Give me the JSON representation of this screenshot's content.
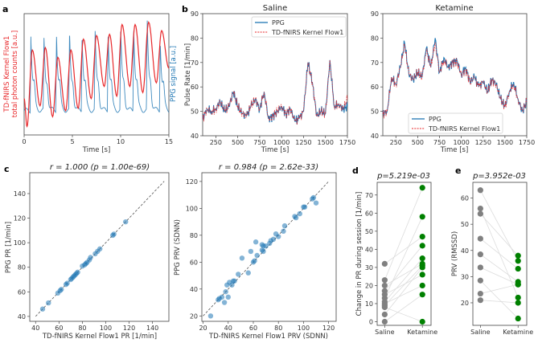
{
  "panel_labels": {
    "a": "a",
    "b": "b",
    "c": "c",
    "d": "d",
    "e": "e"
  },
  "colors": {
    "ppg": "#1f77b4",
    "flow": "#e8282b",
    "saline_dot": "#808080",
    "ketamine_dot": "#008000",
    "identity": "#555555"
  },
  "chart_data": [
    {
      "id": "a",
      "type": "line",
      "xlabel": "Time [s]",
      "ylabel_left": [
        "TD-fNIRS Kernel Flow1",
        "total photon counts [a.u.]"
      ],
      "ylabel_right": "PPG signal [a.u.]",
      "xlim": [
        0,
        15
      ],
      "xticks": [
        0,
        5,
        10,
        15
      ],
      "series": [
        {
          "name": "PPG",
          "beat_times": [
            0.7,
            2.05,
            3.35,
            4.7,
            6.0,
            7.35,
            8.7,
            10.0,
            11.35,
            12.75,
            14.1
          ],
          "peak_values": [
            0.83,
            0.81,
            0.86,
            0.86,
            0.86,
            0.87,
            0.89,
            0.9,
            0.91,
            0.96,
            0.81
          ],
          "baseline": 0.2
        },
        {
          "name": "TD-fNIRS Kernel Flow1",
          "peak_times": [
            0.85,
            2.2,
            3.5,
            4.85,
            6.15,
            7.5,
            8.85,
            10.15,
            11.5,
            12.9,
            14.25
          ],
          "peak_values": [
            0.7,
            0.72,
            0.64,
            0.7,
            0.79,
            0.82,
            0.83,
            0.91,
            0.91,
            0.93,
            0.86
          ],
          "trough_times": [
            0.3,
            1.65,
            2.95,
            4.3,
            5.6,
            6.95,
            8.3,
            9.6,
            10.95,
            12.3,
            13.7
          ],
          "trough_values": [
            0.07,
            0.24,
            0.15,
            0.2,
            0.22,
            0.3,
            0.4,
            0.32,
            0.4,
            0.35,
            0.43
          ]
        }
      ]
    },
    {
      "id": "b-saline",
      "type": "line",
      "title": "Saline",
      "xlabel": "Time [s]",
      "ylabel": "Pulse Rate [1/min]",
      "xlim": [
        100,
        1750
      ],
      "ylim": [
        40,
        90
      ],
      "xticks": [
        250,
        500,
        750,
        1000,
        1250,
        1500,
        1750
      ],
      "yticks": [
        40,
        50,
        60,
        70,
        80,
        90
      ],
      "legend": {
        "position": "upper right",
        "entries": [
          "PPG",
          "TD-fNIRS Kernel Flow1"
        ]
      },
      "x_start": 100,
      "x_step": 50,
      "series": [
        {
          "name": "PPG",
          "values": [
            47,
            51,
            50,
            51,
            54,
            50,
            52,
            58,
            52,
            49,
            48,
            52,
            55,
            51,
            58,
            47,
            48,
            50,
            52,
            49,
            51,
            46,
            47,
            50,
            70,
            62,
            48,
            50,
            49,
            71,
            52,
            53,
            51,
            52
          ]
        },
        {
          "name": "TD-fNIRS Kernel Flow1",
          "values": [
            47,
            51,
            50,
            51,
            54,
            50,
            52,
            58,
            52,
            49,
            48,
            52,
            55,
            51,
            58,
            47,
            48,
            50,
            52,
            49,
            51,
            46,
            47,
            50,
            70,
            62,
            48,
            50,
            49,
            71,
            52,
            53,
            51,
            55
          ]
        }
      ]
    },
    {
      "id": "b-ketamine",
      "type": "line",
      "title": "Ketamine",
      "xlabel": "Time [s]",
      "xlim": [
        100,
        1750
      ],
      "ylim": [
        40,
        90
      ],
      "xticks": [
        250,
        500,
        750,
        1000,
        1250,
        1500,
        1750
      ],
      "yticks": [
        40,
        50,
        60,
        70,
        80,
        90
      ],
      "legend": {
        "position": "lower right",
        "entries": [
          "PPG",
          "TD-fNIRS Kernel Flow1"
        ]
      },
      "x_start": 100,
      "x_step": 50,
      "series": [
        {
          "name": "PPG",
          "values": [
            49,
            50,
            64,
            61,
            68,
            78,
            65,
            63,
            66,
            64,
            76,
            68,
            80,
            66,
            72,
            68,
            70,
            71,
            65,
            68,
            62,
            64,
            60,
            62,
            58,
            63,
            61,
            55,
            52,
            58,
            62,
            55,
            50,
            54
          ]
        },
        {
          "name": "TD-fNIRS Kernel Flow1",
          "values": [
            49,
            50,
            64,
            61,
            68,
            77,
            65,
            63,
            66,
            64,
            75,
            68,
            78,
            66,
            71,
            68,
            70,
            70,
            65,
            67,
            62,
            64,
            60,
            62,
            58,
            63,
            61,
            55,
            52,
            58,
            61,
            55,
            50,
            54
          ]
        }
      ]
    },
    {
      "id": "c-pr",
      "type": "scatter",
      "title": "r = 1.000 (p = 1.00e-69)",
      "xlabel": "TD-fNIRS Kernel Flow1 PR [1/min]",
      "ylabel": "PPG PR [1/min]",
      "xlim": [
        35,
        154
      ],
      "ylim": [
        36,
        157
      ],
      "xticks": [
        40,
        60,
        80,
        100,
        120,
        140
      ],
      "yticks": [
        40,
        60,
        80,
        100,
        120,
        140
      ],
      "identity_line": [
        40,
        150
      ],
      "points": [
        [
          46,
          46
        ],
        [
          51,
          51
        ],
        [
          59,
          59
        ],
        [
          61,
          61
        ],
        [
          62,
          62
        ],
        [
          66,
          66
        ],
        [
          67,
          67
        ],
        [
          70,
          70
        ],
        [
          71,
          71
        ],
        [
          72,
          72
        ],
        [
          73,
          73
        ],
        [
          74,
          74
        ],
        [
          75,
          75
        ],
        [
          76,
          76
        ],
        [
          80,
          81
        ],
        [
          82,
          82
        ],
        [
          83,
          83
        ],
        [
          84,
          84
        ],
        [
          86,
          86
        ],
        [
          87,
          88
        ],
        [
          91,
          91
        ],
        [
          93,
          93
        ],
        [
          95,
          95
        ],
        [
          106,
          106
        ],
        [
          107,
          107
        ],
        [
          117,
          117
        ]
      ]
    },
    {
      "id": "c-prv",
      "type": "scatter",
      "title": "r = 0.984 (p = 2.62e-33)",
      "xlabel": "TD-fNIRS Kernel Flow1 PRV (SDNN)",
      "ylabel": "PPG PRV (SDNN)",
      "xlim": [
        19,
        126
      ],
      "ylim": [
        16,
        126.5
      ],
      "xticks": [
        20,
        40,
        60,
        80,
        100,
        120
      ],
      "yticks": [
        20,
        40,
        60,
        80,
        100,
        120
      ],
      "identity_line": [
        20,
        120
      ],
      "points": [
        [
          26,
          20
        ],
        [
          32,
          32
        ],
        [
          33,
          33
        ],
        [
          35,
          34
        ],
        [
          37,
          30
        ],
        [
          38,
          38
        ],
        [
          39,
          43
        ],
        [
          40,
          34
        ],
        [
          41,
          45
        ],
        [
          43,
          43
        ],
        [
          44,
          46
        ],
        [
          45,
          46
        ],
        [
          48,
          51
        ],
        [
          51,
          63
        ],
        [
          56,
          52
        ],
        [
          58,
          68
        ],
        [
          60,
          60
        ],
        [
          61,
          61
        ],
        [
          62,
          75
        ],
        [
          63,
          65
        ],
        [
          67,
          69
        ],
        [
          67,
          73
        ],
        [
          68,
          68
        ],
        [
          68,
          72
        ],
        [
          70,
          72
        ],
        [
          73,
          74
        ],
        [
          74,
          76
        ],
        [
          76,
          77
        ],
        [
          78,
          81
        ],
        [
          80,
          79
        ],
        [
          84,
          83
        ],
        [
          85,
          87
        ],
        [
          93,
          94
        ],
        [
          94,
          93
        ],
        [
          97,
          96
        ],
        [
          100,
          101
        ],
        [
          101,
          101
        ],
        [
          107,
          107
        ],
        [
          108,
          108
        ],
        [
          110,
          104
        ]
      ]
    },
    {
      "id": "d",
      "type": "scatter",
      "title": "p=5.219e-03",
      "ylabel": "Change in PR during session [1/min]",
      "categories": [
        "Saline",
        "Ketamine"
      ],
      "ylim": [
        -2,
        77
      ],
      "yticks": [
        0,
        10,
        20,
        30,
        40,
        50,
        60,
        70
      ],
      "saline": [
        32,
        23,
        20,
        17,
        15,
        13,
        11,
        10,
        9,
        8,
        4,
        0
      ],
      "ketamine": [
        74,
        58,
        47,
        42,
        35,
        32,
        31,
        30,
        26,
        20,
        15,
        0
      ],
      "pair_order": [
        2,
        0,
        5,
        3,
        8,
        1,
        4,
        9,
        6,
        11,
        7,
        10
      ]
    },
    {
      "id": "e",
      "type": "scatter",
      "title": "p=3.952e-03",
      "ylabel": "PRV (RMSSD)",
      "categories": [
        "Saline",
        "Ketamine"
      ],
      "ylim": [
        11.4,
        66
      ],
      "yticks": [
        20,
        30,
        40,
        50,
        60
      ],
      "saline": [
        63,
        56,
        54,
        44.5,
        38.5,
        33.5,
        28.5,
        23.5,
        21
      ],
      "ketamine": [
        38,
        36,
        33,
        28,
        27,
        27,
        22,
        20,
        14
      ],
      "pair_order": [
        1,
        6,
        0,
        2,
        3,
        4,
        8,
        5,
        7
      ]
    }
  ]
}
